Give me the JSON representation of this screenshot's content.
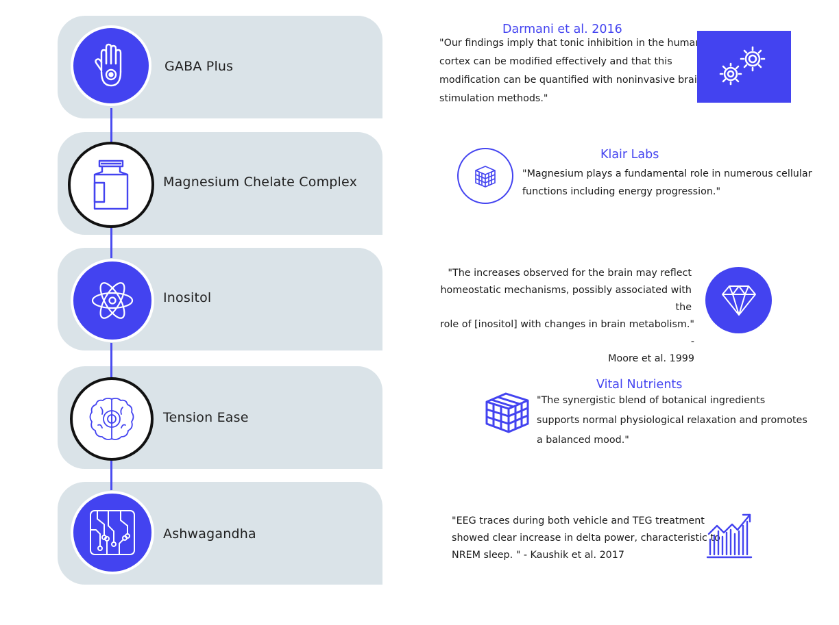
{
  "items": [
    {
      "label": "GABA Plus",
      "icon": "hand-icon"
    },
    {
      "label": "Magnesium Chelate Complex",
      "icon": "supplement-bottle-icon"
    },
    {
      "label": "Inositol",
      "icon": "atom-icon"
    },
    {
      "label": "Tension Ease",
      "icon": "brain-gear-icon"
    },
    {
      "label": "Ashwagandha",
      "icon": "circuit-board-icon"
    }
  ],
  "quotes": [
    {
      "source": "Darmani et al. 2016",
      "lines": [
        "\"Our findings imply that tonic inhibition in the human",
        "cortex can be modified effectively and that this",
        "modification can be quantified with noninvasive brain",
        "stimulation methods.\""
      ],
      "icon": "gears-icon"
    },
    {
      "source": "Klair Labs",
      "lines": [
        "\"Magnesium plays a fundamental role in numerous cellular",
        "functions including energy progression.\""
      ],
      "icon": "cube-grid-icon"
    },
    {
      "source": "",
      "lines": [
        "\"The increases observed for the brain may reflect",
        "homeostatic mechanisms, possibly associated with the",
        "role of  [inositol] with changes in brain metabolism.\" -",
        "Moore et al. 1999"
      ],
      "icon": "diamond-icon"
    },
    {
      "source": "Vital Nutrients",
      "lines": [
        "\"The synergistic blend of botanical ingredients",
        "supports normal physiological relaxation and promotes",
        "a balanced mood.\""
      ],
      "icon": "cube-icon"
    },
    {
      "source": "",
      "lines": [
        "\"EEG traces during both vehicle and TEG treatment",
        "showed clear increase in delta power, characteristic to",
        "NREM sleep. \" - Kaushik et al. 2017"
      ],
      "icon": "bar-chart-growth-icon"
    }
  ],
  "colors": {
    "accent": "#4343f0",
    "panel": "#dae3e8",
    "ring_dark": "#111111"
  }
}
